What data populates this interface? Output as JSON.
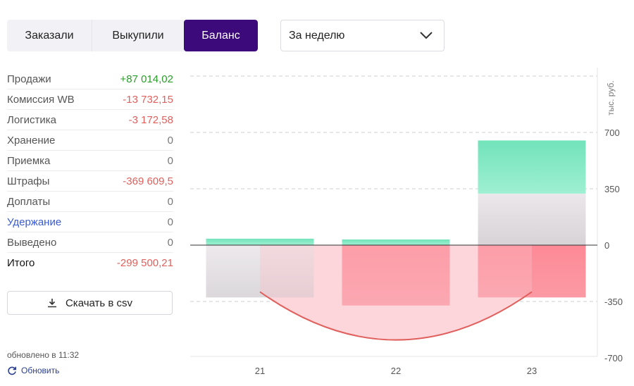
{
  "tabs": [
    {
      "label": "Заказали",
      "active": false
    },
    {
      "label": "Выкупили",
      "active": false
    },
    {
      "label": "Баланс",
      "active": true
    }
  ],
  "period": {
    "selected": "За неделю"
  },
  "stats": [
    {
      "label": "Продажи",
      "value": "+87 014,02",
      "kind": "pos"
    },
    {
      "label": "Комиссия WB",
      "value": "-13 732,15",
      "kind": "neg"
    },
    {
      "label": "Логистика",
      "value": "-3 172,58",
      "kind": "neg"
    },
    {
      "label": "Хранение",
      "value": "0",
      "kind": "zero"
    },
    {
      "label": "Приемка",
      "value": "0",
      "kind": "zero"
    },
    {
      "label": "Штрафы",
      "value": "-369 609,5",
      "kind": "neg"
    },
    {
      "label": "Доплаты",
      "value": "0",
      "kind": "zero"
    },
    {
      "label": "Удержание",
      "value": "0",
      "kind": "zero"
    },
    {
      "label": "Выведено",
      "value": "0",
      "kind": "zero"
    },
    {
      "label": "Итого",
      "value": "-299 500,21",
      "kind": "neg"
    }
  ],
  "csv_button": "Скачать в csv",
  "updated": "обновлено в 11:32",
  "refresh": "Обновить",
  "colors": {
    "accent": "#3c0a7a",
    "positive": "#2a9d2a",
    "negative": "#e0605d",
    "bar_positive": "#7fe6c0",
    "bar_negative": "#fb8f9a",
    "bar_neutral": "#e0dcdf",
    "curve": "#e0605d"
  },
  "chart_data": {
    "type": "bar",
    "ylabel": "тыс. руб.",
    "ylim": [
      -700,
      1050
    ],
    "yticks": [
      700,
      350,
      0,
      -350,
      -700
    ],
    "categories": [
      "21",
      "22",
      "23"
    ],
    "series": [
      {
        "values": [
          40,
          35,
          650
        ]
      },
      {
        "values": [
          -330,
          -375,
          -325
        ]
      }
    ],
    "overlay": [
      {
        "values": [
          0,
          0,
          320
        ]
      },
      {
        "values": [
          -325,
          0,
          0
        ]
      }
    ],
    "curve": {
      "x": [
        21.0,
        21.5,
        22.0,
        22.5,
        23.0
      ],
      "y": [
        -290,
        -560,
        -625,
        -560,
        -290
      ]
    }
  }
}
